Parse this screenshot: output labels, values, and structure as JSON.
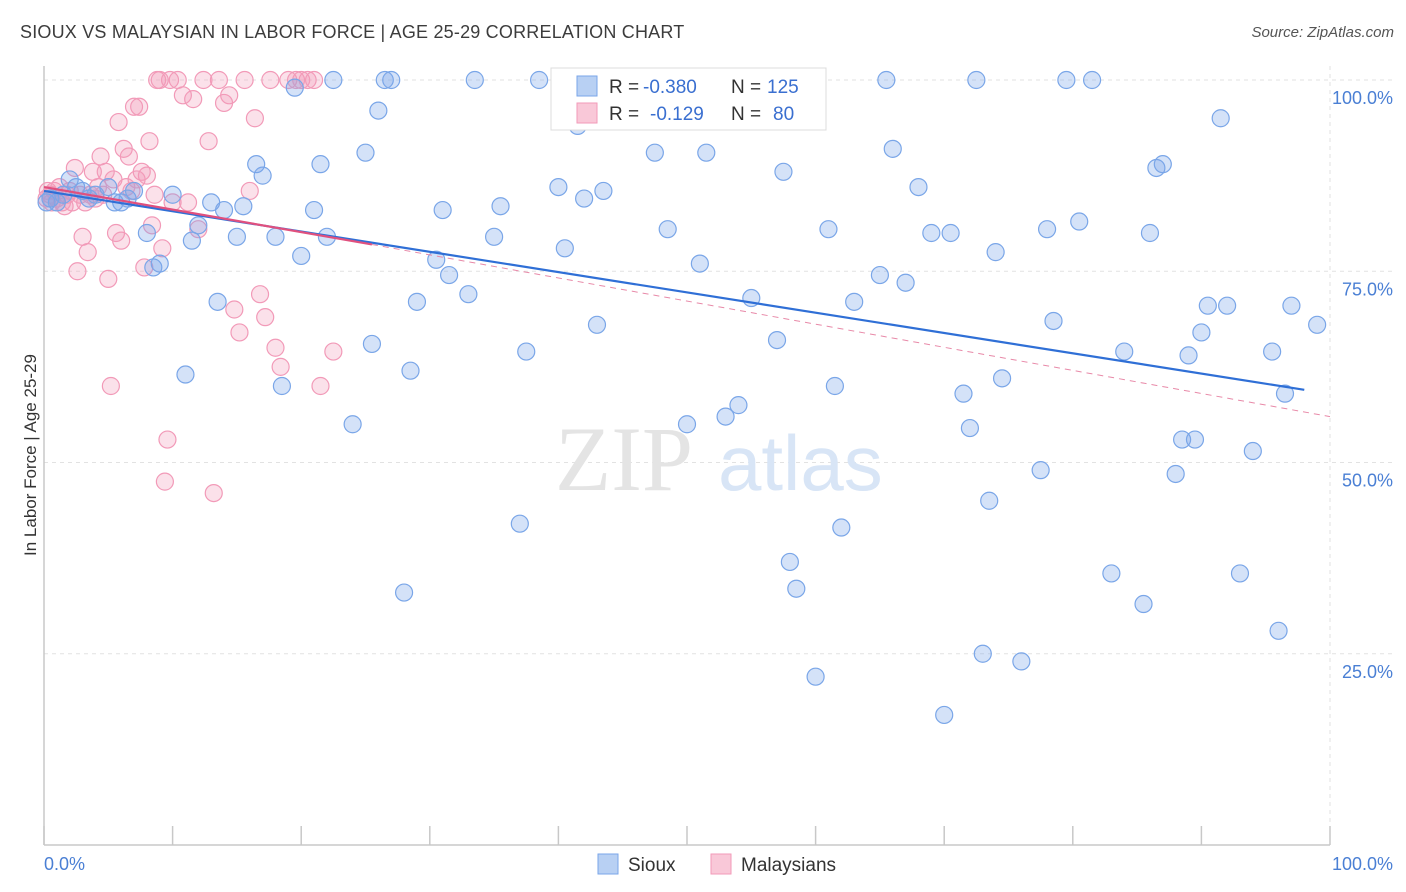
{
  "title": "SIOUX VS MALAYSIAN IN LABOR FORCE | AGE 25-29 CORRELATION CHART",
  "source": "Source: ZipAtlas.com",
  "watermark": {
    "zip": "ZIP",
    "atlas": "atlas"
  },
  "colors": {
    "sioux": "#7aa6e8",
    "sioux_line": "#2f6fd6",
    "malaysians": "#f29ab8",
    "malaysians_line": "#e0507e",
    "axis_text": "#4a7fd4"
  },
  "legend": {
    "r_label": "R =",
    "n_label": "N =",
    "rows": [
      {
        "series": "Sioux",
        "r": "-0.380",
        "n": "125"
      },
      {
        "series": "Malaysians",
        "r": "-0.129",
        "n": "80"
      }
    ]
  },
  "chart_data": {
    "type": "scatter",
    "title": "SIOUX VS MALAYSIAN IN LABOR FORCE | AGE 25-29 CORRELATION CHART",
    "xlabel": "",
    "ylabel": "In Labor Force | Age 25-29",
    "xlim": [
      0,
      100
    ],
    "ylim": [
      0,
      105
    ],
    "x_tick_labels": [
      "0.0%",
      "100.0%"
    ],
    "y_ticks": [
      25,
      50,
      75,
      100
    ],
    "y_tick_labels": [
      "25.0%",
      "50.0%",
      "75.0%",
      "100.0%"
    ],
    "grid": true,
    "legend_position": "top-center",
    "series": [
      {
        "name": "Sioux",
        "r": -0.38,
        "n": 125,
        "trend": {
          "x": [
            0,
            98
          ],
          "y": [
            85.5,
            59.5
          ]
        },
        "points": [
          [
            0.2,
            84
          ],
          [
            0.5,
            84.5
          ],
          [
            1,
            84
          ],
          [
            1.5,
            85
          ],
          [
            2,
            87
          ],
          [
            2.5,
            86
          ],
          [
            3,
            85.5
          ],
          [
            3.5,
            84.5
          ],
          [
            4,
            85
          ],
          [
            5,
            86
          ],
          [
            5.5,
            84
          ],
          [
            6,
            84
          ],
          [
            6.5,
            84.5
          ],
          [
            7,
            85.5
          ],
          [
            8,
            80
          ],
          [
            8.5,
            75.5
          ],
          [
            9,
            76
          ],
          [
            10,
            85
          ],
          [
            11,
            61.5
          ],
          [
            11.5,
            79
          ],
          [
            12,
            81
          ],
          [
            13,
            84
          ],
          [
            13.5,
            71
          ],
          [
            14,
            83
          ],
          [
            15,
            79.5
          ],
          [
            15.5,
            83.5
          ],
          [
            16.5,
            89
          ],
          [
            17,
            87.5
          ],
          [
            18,
            79.5
          ],
          [
            18.5,
            60
          ],
          [
            19.5,
            99
          ],
          [
            20,
            77
          ],
          [
            21,
            83
          ],
          [
            21.5,
            89
          ],
          [
            22,
            79.5
          ],
          [
            22.5,
            100
          ],
          [
            24,
            55
          ],
          [
            25,
            90.5
          ],
          [
            25.5,
            65.5
          ],
          [
            26,
            96
          ],
          [
            26.5,
            100
          ],
          [
            27,
            100
          ],
          [
            28,
            33
          ],
          [
            28.5,
            62
          ],
          [
            29,
            71
          ],
          [
            30.5,
            76.5
          ],
          [
            31,
            83
          ],
          [
            31.5,
            74.5
          ],
          [
            33,
            72
          ],
          [
            33.5,
            100
          ],
          [
            35,
            79.5
          ],
          [
            35.5,
            83.5
          ],
          [
            37,
            42
          ],
          [
            37.5,
            64.5
          ],
          [
            38.5,
            100
          ],
          [
            40,
            86
          ],
          [
            40.5,
            78
          ],
          [
            40.8,
            100
          ],
          [
            41,
            100
          ],
          [
            41.5,
            94
          ],
          [
            42,
            84.5
          ],
          [
            43,
            68
          ],
          [
            43.5,
            85.5
          ],
          [
            44,
            100
          ],
          [
            45.5,
            100
          ],
          [
            47.5,
            90.5
          ],
          [
            48.5,
            80.5
          ],
          [
            49,
            100
          ],
          [
            50,
            55
          ],
          [
            51,
            76
          ],
          [
            51.5,
            90.5
          ],
          [
            53,
            56
          ],
          [
            54,
            57.5
          ],
          [
            55,
            71.5
          ],
          [
            57,
            66
          ],
          [
            57.5,
            88
          ],
          [
            58,
            37
          ],
          [
            58.5,
            33.5
          ],
          [
            60,
            22
          ],
          [
            61,
            80.5
          ],
          [
            61.5,
            60
          ],
          [
            62,
            41.5
          ],
          [
            63,
            71
          ],
          [
            65,
            74.5
          ],
          [
            65.5,
            100
          ],
          [
            66,
            91
          ],
          [
            67,
            73.5
          ],
          [
            68,
            86
          ],
          [
            69,
            80
          ],
          [
            70,
            17
          ],
          [
            70.5,
            80
          ],
          [
            71.5,
            59
          ],
          [
            72,
            54.5
          ],
          [
            72.5,
            100
          ],
          [
            73,
            25
          ],
          [
            73.5,
            45
          ],
          [
            74,
            77.5
          ],
          [
            74.5,
            61
          ],
          [
            76,
            24
          ],
          [
            77.5,
            49
          ],
          [
            78,
            80.5
          ],
          [
            78.5,
            68.5
          ],
          [
            79.5,
            100
          ],
          [
            80.5,
            81.5
          ],
          [
            81.5,
            100
          ],
          [
            83,
            35.5
          ],
          [
            84,
            64.5
          ],
          [
            85.5,
            31.5
          ],
          [
            86,
            80
          ],
          [
            86.5,
            88.5
          ],
          [
            87,
            89
          ],
          [
            88,
            48.5
          ],
          [
            88.5,
            53
          ],
          [
            89,
            64
          ],
          [
            89.5,
            53
          ],
          [
            90,
            67
          ],
          [
            90.5,
            70.5
          ],
          [
            91.5,
            95
          ],
          [
            92,
            70.5
          ],
          [
            93,
            35.5
          ],
          [
            94,
            51.5
          ],
          [
            95.5,
            64.5
          ],
          [
            96,
            28
          ],
          [
            96.5,
            59
          ],
          [
            97,
            70.5
          ],
          [
            99,
            68
          ]
        ]
      },
      {
        "name": "Malaysians",
        "r": -0.129,
        "n": 80,
        "trend": {
          "x": [
            0,
            25.5
          ],
          "y": [
            86,
            78.5
          ]
        },
        "trend_dashed": {
          "x": [
            25.5,
            100
          ],
          "y": [
            78.5,
            56
          ]
        },
        "points": [
          [
            0.2,
            84.5
          ],
          [
            0.3,
            85.5
          ],
          [
            0.5,
            85
          ],
          [
            0.6,
            84
          ],
          [
            0.8,
            85.5
          ],
          [
            1,
            84.5
          ],
          [
            1.2,
            86
          ],
          [
            1.4,
            84
          ],
          [
            1.6,
            83.5
          ],
          [
            1.8,
            85
          ],
          [
            2,
            85.5
          ],
          [
            2.2,
            84
          ],
          [
            2.4,
            88.5
          ],
          [
            2.6,
            75
          ],
          [
            2.8,
            85
          ],
          [
            3,
            79.5
          ],
          [
            3.2,
            84
          ],
          [
            3.4,
            77.5
          ],
          [
            3.6,
            85
          ],
          [
            3.8,
            88
          ],
          [
            4,
            84.5
          ],
          [
            4.2,
            86
          ],
          [
            4.4,
            90
          ],
          [
            4.6,
            85
          ],
          [
            4.8,
            88
          ],
          [
            5,
            74
          ],
          [
            5.2,
            60
          ],
          [
            5.4,
            87
          ],
          [
            5.6,
            80
          ],
          [
            5.8,
            94.5
          ],
          [
            6,
            79
          ],
          [
            6.2,
            91
          ],
          [
            6.4,
            86
          ],
          [
            6.6,
            90
          ],
          [
            6.8,
            85.5
          ],
          [
            7,
            96.5
          ],
          [
            7.2,
            87
          ],
          [
            7.4,
            96.5
          ],
          [
            7.6,
            88
          ],
          [
            7.8,
            75.5
          ],
          [
            8,
            87.5
          ],
          [
            8.2,
            92
          ],
          [
            8.4,
            81
          ],
          [
            8.6,
            85
          ],
          [
            8.8,
            100
          ],
          [
            9,
            100
          ],
          [
            9.2,
            78
          ],
          [
            9.4,
            47.5
          ],
          [
            9.6,
            53
          ],
          [
            9.8,
            100
          ],
          [
            10,
            84
          ],
          [
            10.4,
            100
          ],
          [
            10.8,
            98
          ],
          [
            11.2,
            84
          ],
          [
            11.6,
            97.5
          ],
          [
            12,
            80.5
          ],
          [
            12.4,
            100
          ],
          [
            12.8,
            92
          ],
          [
            13.2,
            46
          ],
          [
            13.6,
            100
          ],
          [
            14,
            97
          ],
          [
            14.4,
            98
          ],
          [
            14.8,
            70
          ],
          [
            15.2,
            67
          ],
          [
            15.6,
            100
          ],
          [
            16,
            85.5
          ],
          [
            16.4,
            95
          ],
          [
            16.8,
            72
          ],
          [
            17.2,
            69
          ],
          [
            17.6,
            100
          ],
          [
            18,
            65
          ],
          [
            18.4,
            62.5
          ],
          [
            19,
            100
          ],
          [
            19.6,
            100
          ],
          [
            20,
            100
          ],
          [
            20.5,
            100
          ],
          [
            21,
            100
          ],
          [
            21.5,
            60
          ],
          [
            22.5,
            64.5
          ]
        ]
      }
    ]
  },
  "bottom_legend": [
    "Sioux",
    "Malaysians"
  ]
}
